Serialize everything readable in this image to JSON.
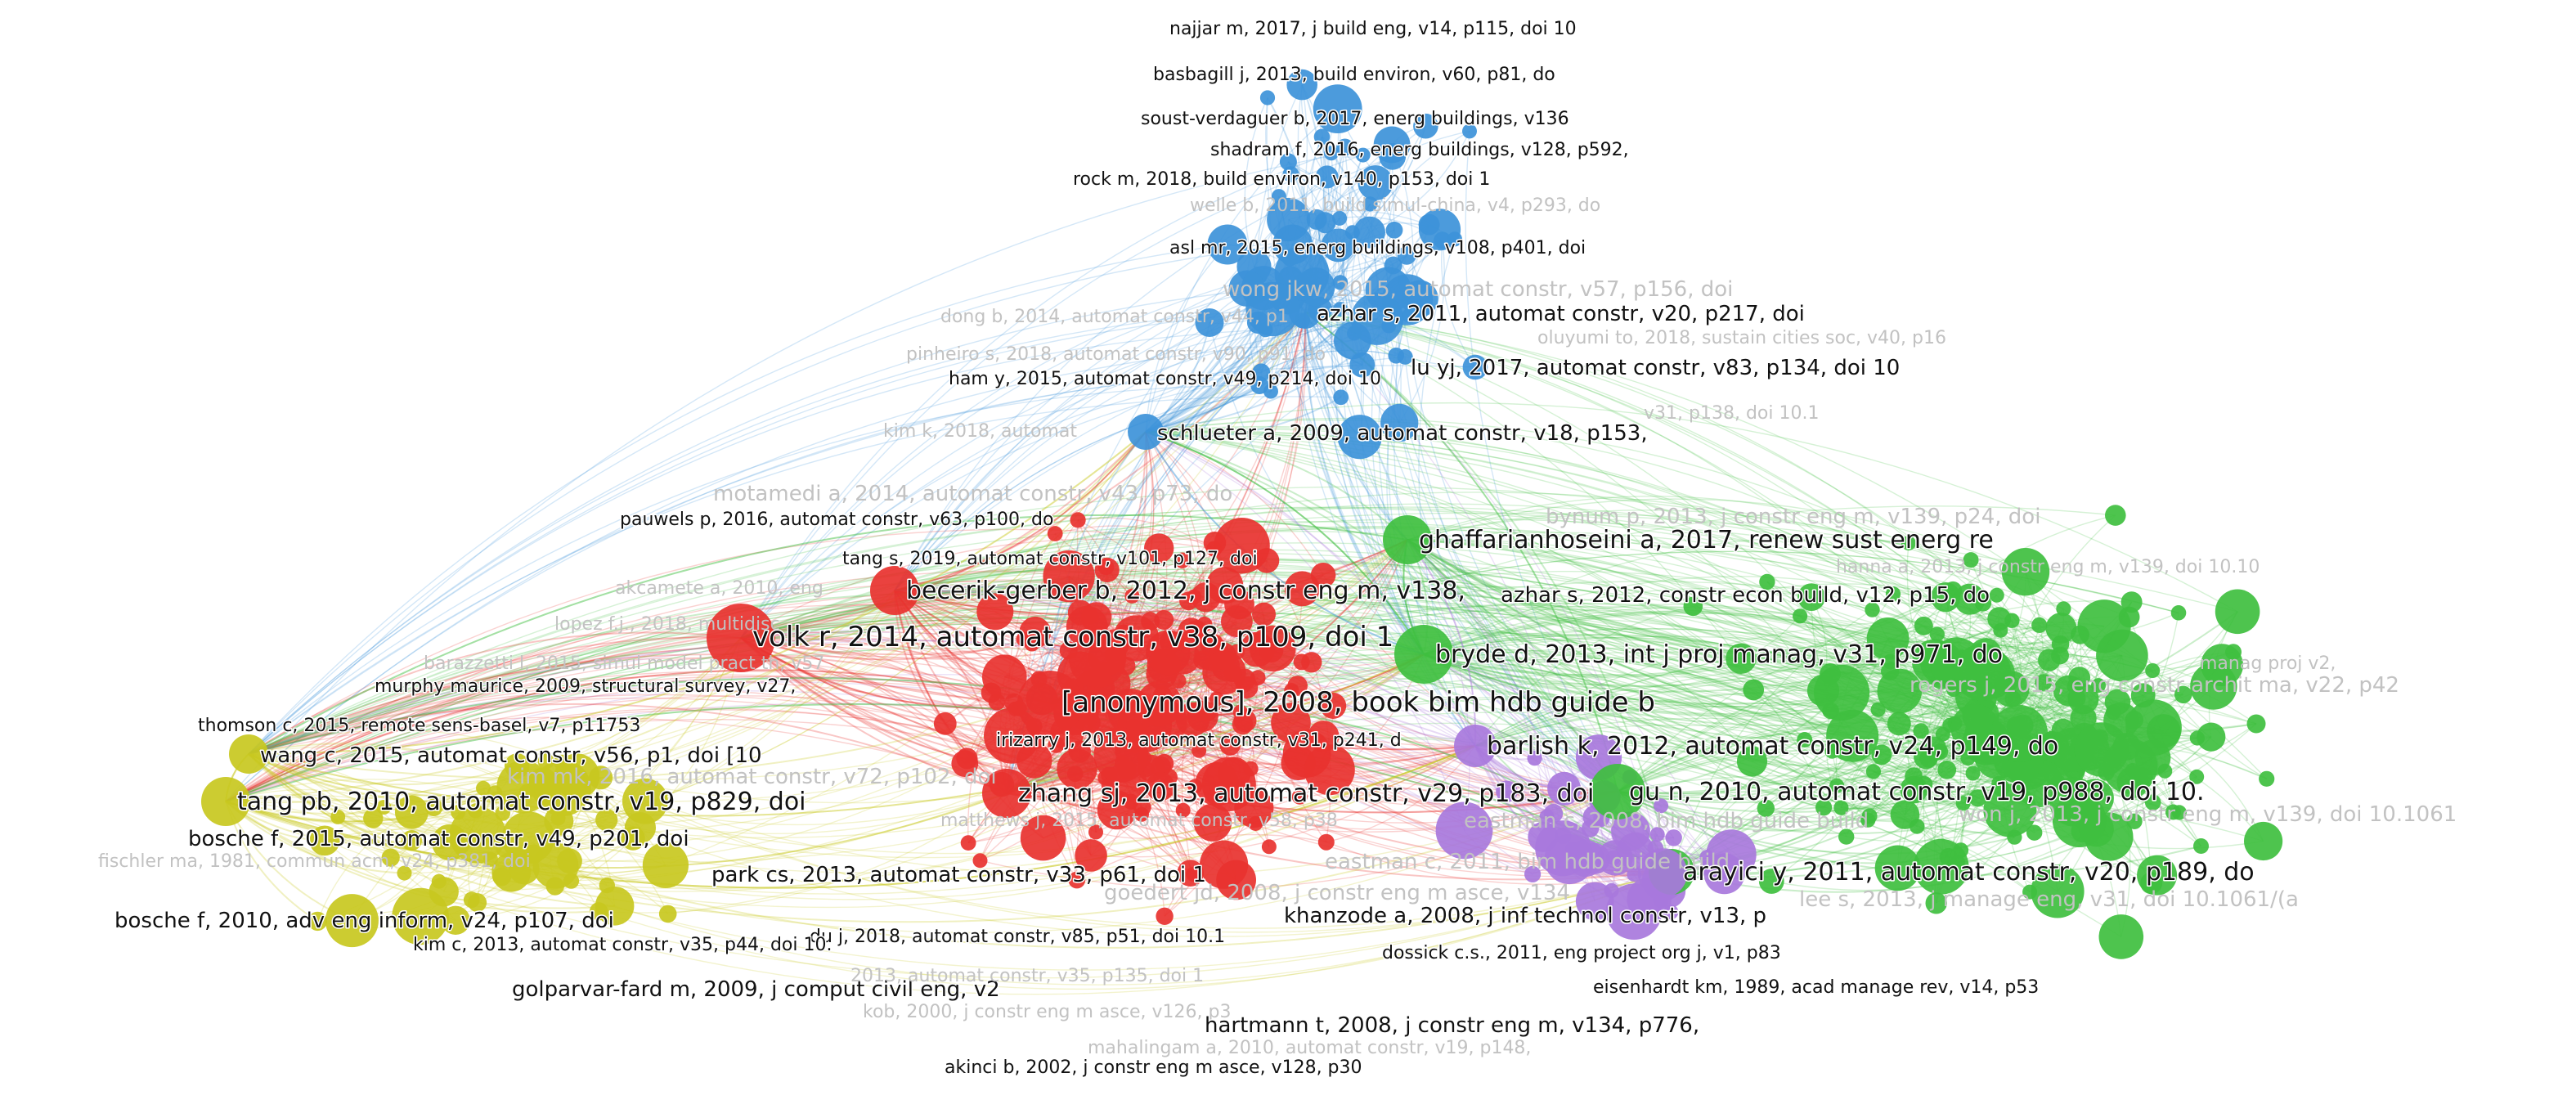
{
  "network": {
    "colors": {
      "red": "#e8322f",
      "blue": "#3d93d9",
      "green": "#3fbf3f",
      "yellow": "#c8c820",
      "purple": "#a878dc",
      "background": "#ffffff",
      "label_dark": "#111111",
      "label_faint": "#c2c2c2"
    },
    "clusters": [
      {
        "id": "blue",
        "color": "#3d93d9"
      },
      {
        "id": "red",
        "color": "#e8322f"
      },
      {
        "id": "green",
        "color": "#3fbf3f"
      },
      {
        "id": "yellow",
        "color": "#c8c820"
      },
      {
        "id": "purple",
        "color": "#a878dc"
      }
    ],
    "labels": [
      {
        "text": "najjar m, 2017, j build eng, v14, p115, doi 10",
        "cluster": "blue",
        "weight": 1,
        "faint": false
      },
      {
        "text": "basbagill j, 2013, build environ, v60, p81, do",
        "cluster": "blue",
        "weight": 1,
        "faint": false
      },
      {
        "text": "soust-verdaguer b, 2017, energ buildings, v136",
        "cluster": "blue",
        "weight": 1,
        "faint": false
      },
      {
        "text": "shadram f, 2016, energ buildings, v128, p592,",
        "cluster": "blue",
        "weight": 1,
        "faint": false
      },
      {
        "text": "rock m, 2018, build environ, v140, p153, doi 1",
        "cluster": "blue",
        "weight": 1,
        "faint": false
      },
      {
        "text": "welle b, 2011, build simul-china, v4, p293, do",
        "cluster": "blue",
        "weight": 1,
        "faint": true
      },
      {
        "text": "asl mr, 2015, energ buildings, v108, p401, doi",
        "cluster": "blue",
        "weight": 1,
        "faint": false
      },
      {
        "text": "wong jkw, 2015, automat constr, v57, p156, doi",
        "cluster": "blue",
        "weight": 2,
        "faint": true
      },
      {
        "text": "azhar s, 2011, automat constr, v20, p217, doi",
        "cluster": "blue",
        "weight": 2,
        "faint": false
      },
      {
        "text": "dong b, 2014, automat constr, v44, p1",
        "cluster": "blue",
        "weight": 1,
        "faint": true
      },
      {
        "text": "oluyumi to, 2018, sustain cities soc, v40, p16",
        "cluster": "blue",
        "weight": 1,
        "faint": true
      },
      {
        "text": "pinheiro s, 2018, automat constr, v90, p91, do",
        "cluster": "blue",
        "weight": 1,
        "faint": true
      },
      {
        "text": "lu yj, 2017, automat constr, v83, p134, doi 10",
        "cluster": "blue",
        "weight": 2,
        "faint": false
      },
      {
        "text": "ham y, 2015, automat constr, v49, p214, doi 10",
        "cluster": "blue",
        "weight": 1,
        "faint": false
      },
      {
        "text": "v31, p138, doi 10.1",
        "cluster": "green",
        "weight": 1,
        "faint": true
      },
      {
        "text": "kim k, 2018, automat",
        "cluster": "red",
        "weight": 1,
        "faint": true
      },
      {
        "text": "schlueter a, 2009, automat constr, v18, p153,",
        "cluster": "blue",
        "weight": 2,
        "faint": false
      },
      {
        "text": "motamedi a, 2014, automat constr, v43, p73, do",
        "cluster": "red",
        "weight": 2,
        "faint": true
      },
      {
        "text": "bynum p, 2013, j constr eng m, v139, p24, doi",
        "cluster": "green",
        "weight": 2,
        "faint": true
      },
      {
        "text": "pauwels p, 2016, automat constr, v63, p100, do",
        "cluster": "red",
        "weight": 1,
        "faint": false
      },
      {
        "text": "ghaffarianhoseini a, 2017, renew sust energ re",
        "cluster": "green",
        "weight": 3,
        "faint": false
      },
      {
        "text": "tang s, 2019, automat constr, v101, p127, doi",
        "cluster": "red",
        "weight": 1,
        "faint": false
      },
      {
        "text": "hanna a, 2013, j constr eng m, v139, doi 10.10",
        "cluster": "green",
        "weight": 1,
        "faint": true
      },
      {
        "text": "akcamete a, 2010, eng",
        "cluster": "red",
        "weight": 1,
        "faint": true
      },
      {
        "text": "becerik-gerber b, 2012, j constr eng m, v138,",
        "cluster": "red",
        "weight": 3,
        "faint": false
      },
      {
        "text": "azhar s, 2012, constr econ build, v12, p15, do",
        "cluster": "green",
        "weight": 2,
        "faint": false
      },
      {
        "text": "lopez f.j., 2018, multidisc",
        "cluster": "yellow",
        "weight": 1,
        "faint": true
      },
      {
        "text": "volk r, 2014, automat constr, v38, p109, doi 1",
        "cluster": "red",
        "weight": 4,
        "faint": false
      },
      {
        "text": "bryde d, 2013, int j proj manag, v31, p971, do",
        "cluster": "green",
        "weight": 3,
        "faint": false
      },
      {
        "text": "barazzetti l, 2015, simul model pract th, v57",
        "cluster": "yellow",
        "weight": 1,
        "faint": true
      },
      {
        "text": "manag proj v2,",
        "cluster": "green",
        "weight": 1,
        "faint": true
      },
      {
        "text": "murphy maurice, 2009, structural survey, v27,",
        "cluster": "yellow",
        "weight": 1,
        "faint": false
      },
      {
        "text": "rogers j, 2015, eng constr archit ma, v22, p42",
        "cluster": "green",
        "weight": 2,
        "faint": true
      },
      {
        "text": "[anonymous], 2008, book bim hdb guide b",
        "cluster": "red",
        "weight": 4,
        "faint": false
      },
      {
        "text": "thomson c, 2015, remote sens-basel, v7, p11753",
        "cluster": "yellow",
        "weight": 1,
        "faint": false
      },
      {
        "text": "irizarry j, 2013, automat constr, v31, p241, d",
        "cluster": "red",
        "weight": 1,
        "faint": false
      },
      {
        "text": "barlish k, 2012, automat constr, v24, p149, do",
        "cluster": "purple",
        "weight": 3,
        "faint": false
      },
      {
        "text": "wang c, 2015, automat constr, v56, p1, doi [10",
        "cluster": "yellow",
        "weight": 2,
        "faint": false
      },
      {
        "text": "kim mk, 2016, automat constr, v72, p102, doi",
        "cluster": "yellow",
        "weight": 2,
        "faint": true
      },
      {
        "text": "tang pb, 2010, automat constr, v19, p829, doi",
        "cluster": "yellow",
        "weight": 3,
        "faint": false
      },
      {
        "text": "zhang sj, 2013, automat constr, v29, p183, doi",
        "cluster": "red",
        "weight": 3,
        "faint": false
      },
      {
        "text": "gu n, 2010, automat constr, v19, p988, doi 10.",
        "cluster": "green",
        "weight": 3,
        "faint": false
      },
      {
        "text": "won j, 2013, j constr eng m, v139, doi 10.1061",
        "cluster": "green",
        "weight": 2,
        "faint": true
      },
      {
        "text": "bosche f, 2015, automat constr, v49, p201, doi",
        "cluster": "yellow",
        "weight": 2,
        "faint": false
      },
      {
        "text": "matthews j, 2015, automat constr, v58, p38",
        "cluster": "red",
        "weight": 1,
        "faint": true
      },
      {
        "text": "eastman c, 2008, bim hdb guide build",
        "cluster": "purple",
        "weight": 2,
        "faint": true
      },
      {
        "text": "fischler ma, 1981, commun acm, v24, p381, doi",
        "cluster": "yellow",
        "weight": 1,
        "faint": true
      },
      {
        "text": "eastman c, 2011, bim hdb guide build",
        "cluster": "purple",
        "weight": 2,
        "faint": true
      },
      {
        "text": "park cs, 2013, automat constr, v33, p61, doi 1",
        "cluster": "red",
        "weight": 2,
        "faint": false
      },
      {
        "text": "arayici y, 2011, automat constr, v20, p189, do",
        "cluster": "green",
        "weight": 3,
        "faint": false
      },
      {
        "text": "goedert jd, 2008, j constr eng m asce, v134",
        "cluster": "purple",
        "weight": 2,
        "faint": true
      },
      {
        "text": "lee s, 2013, j manage eng, v31, doi 10.1061/(a",
        "cluster": "green",
        "weight": 2,
        "faint": true
      },
      {
        "text": "bosche f, 2010, adv eng inform, v24, p107, doi",
        "cluster": "yellow",
        "weight": 2,
        "faint": false
      },
      {
        "text": "khanzode a, 2008, j inf technol constr, v13, p",
        "cluster": "purple",
        "weight": 2,
        "faint": false
      },
      {
        "text": "du j, 2018, automat constr, v85, p51, doi 10.1",
        "cluster": "red",
        "weight": 1,
        "faint": false
      },
      {
        "text": "kim c, 2013, automat constr, v35, p44, doi 10.",
        "cluster": "yellow",
        "weight": 1,
        "faint": false
      },
      {
        "text": "dossick c.s., 2011, eng project org j, v1, p83",
        "cluster": "purple",
        "weight": 1,
        "faint": false
      },
      {
        "text": "golparvar-fard m, 2009, j comput civil eng, v2",
        "cluster": "yellow",
        "weight": 2,
        "faint": false
      },
      {
        "text": "eisenhardt km, 1989, acad manage rev, v14, p53",
        "cluster": "green",
        "weight": 1,
        "faint": false
      },
      {
        "text": "2013, automat constr, v35, p135, doi 1",
        "cluster": "red",
        "weight": 1,
        "faint": true
      },
      {
        "text": "kob, 2000, j constr eng m asce, v126, p3",
        "cluster": "red",
        "weight": 1,
        "faint": true
      },
      {
        "text": "hartmann t, 2008, j constr eng m, v134, p776,",
        "cluster": "red",
        "weight": 2,
        "faint": false
      },
      {
        "text": "mahalingam a, 2010, automat constr, v19, p148,",
        "cluster": "purple",
        "weight": 1,
        "faint": true
      },
      {
        "text": "akinci b, 2002, j constr eng m asce, v128, p30",
        "cluster": "red",
        "weight": 1,
        "faint": false
      }
    ]
  }
}
